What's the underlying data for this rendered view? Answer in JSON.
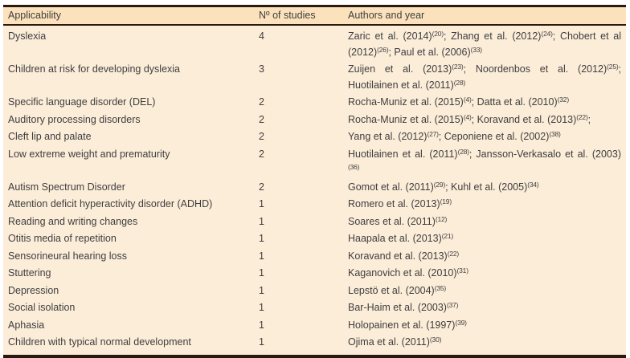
{
  "colors": {
    "header_bg": "#fbe2bc",
    "body_bg": "#fcedd9",
    "border": "#2a1a0d",
    "text": "#3e3e3e"
  },
  "table": {
    "columns": [
      {
        "key": "applicability",
        "label": "Applicability"
      },
      {
        "key": "studies",
        "label": "Nº of studies"
      },
      {
        "key": "authors",
        "label": "Authors and year"
      }
    ],
    "rows": [
      {
        "applicability": "Dyslexia",
        "studies": "4",
        "authors": [
          {
            "t": "Zaric et al. (2014)"
          },
          {
            "s": "(20)"
          },
          {
            "t": "; Zhang et al. (2012)"
          },
          {
            "s": "(24)"
          },
          {
            "t": "; Chobert et al (2012)"
          },
          {
            "s": "(26)"
          },
          {
            "t": "; Paul et al. (2006)"
          },
          {
            "s": "(33)"
          }
        ]
      },
      {
        "applicability": "Children at risk for developing dyslexia",
        "studies": "3",
        "authors": [
          {
            "t": "Zuijen et al. (2013)"
          },
          {
            "s": "(23)"
          },
          {
            "t": "; Noordenbos et al. (2012)"
          },
          {
            "s": "(25)"
          },
          {
            "t": "; Huotilainen et al. (2011)"
          },
          {
            "s": "(28)"
          }
        ]
      },
      {
        "applicability": "Specific language disorder (DEL)",
        "studies": "2",
        "authors": [
          {
            "t": "Rocha-Muniz et al. (2015)"
          },
          {
            "s": "(4)"
          },
          {
            "t": "; Datta et al. (2010)"
          },
          {
            "s": "(32)"
          }
        ]
      },
      {
        "applicability": "Auditory processing disorders",
        "studies": "2",
        "authors": [
          {
            "t": "Rocha-Muniz et al. (2015)"
          },
          {
            "s": "(4)"
          },
          {
            "t": "; Koravand et al. (2013)"
          },
          {
            "s": "(22)"
          },
          {
            "t": ";"
          }
        ]
      },
      {
        "applicability": "Cleft lip and palate",
        "studies": "2",
        "authors": [
          {
            "t": "Yang et al. (2012)"
          },
          {
            "s": "(27)"
          },
          {
            "t": "; Ceponiene et al. (2002)"
          },
          {
            "s": "(38)"
          }
        ]
      },
      {
        "applicability": "Low extreme weight and prematurity",
        "studies": "2",
        "authors": [
          {
            "t": "Huotilainen et al. (2011)"
          },
          {
            "s": "(28)"
          },
          {
            "t": "; Jansson-Verkasalo et al. (2003)"
          },
          {
            "s": "(36)"
          }
        ]
      },
      {
        "applicability": "Autism Spectrum Disorder",
        "studies": "2",
        "authors": [
          {
            "t": "Gomot et al. (2011)"
          },
          {
            "s": "(29)"
          },
          {
            "t": "; Kuhl et al. (2005)"
          },
          {
            "s": "(34)"
          }
        ]
      },
      {
        "applicability": "Attention deficit hyperactivity disorder (ADHD)",
        "studies": "1",
        "authors": [
          {
            "t": "Romero et al. (2013)"
          },
          {
            "s": "(19)"
          }
        ]
      },
      {
        "applicability": "Reading and writing changes",
        "studies": "1",
        "authors": [
          {
            "t": "Soares et al. (2011)"
          },
          {
            "s": "(12)"
          }
        ]
      },
      {
        "applicability": "Otitis media of repetition",
        "studies": "1",
        "authors": [
          {
            "t": "Haapala et al. (2013)"
          },
          {
            "s": "(21)"
          }
        ]
      },
      {
        "applicability": "Sensorineural hearing loss",
        "studies": "1",
        "authors": [
          {
            "t": "Koravand et al. (2013)"
          },
          {
            "s": "(22)"
          }
        ]
      },
      {
        "applicability": "Stuttering",
        "studies": "1",
        "authors": [
          {
            "t": "Kaganovich et al. (2010)"
          },
          {
            "s": "(31)"
          }
        ]
      },
      {
        "applicability": "Depression",
        "studies": "1",
        "authors": [
          {
            "t": "Lepstö et al. (2004)"
          },
          {
            "s": "(35)"
          }
        ]
      },
      {
        "applicability": "Social isolation",
        "studies": "1",
        "authors": [
          {
            "t": "Bar-Haim et al. (2003)"
          },
          {
            "s": "(37)"
          }
        ]
      },
      {
        "applicability": "Aphasia",
        "studies": "1",
        "authors": [
          {
            "t": "Holopainen et al. (1997)"
          },
          {
            "s": "(39)"
          }
        ]
      },
      {
        "applicability": "Children with typical normal development",
        "studies": "1",
        "authors": [
          {
            "t": "Ojima et al. (2011)"
          },
          {
            "s": "(30)"
          }
        ]
      }
    ]
  }
}
